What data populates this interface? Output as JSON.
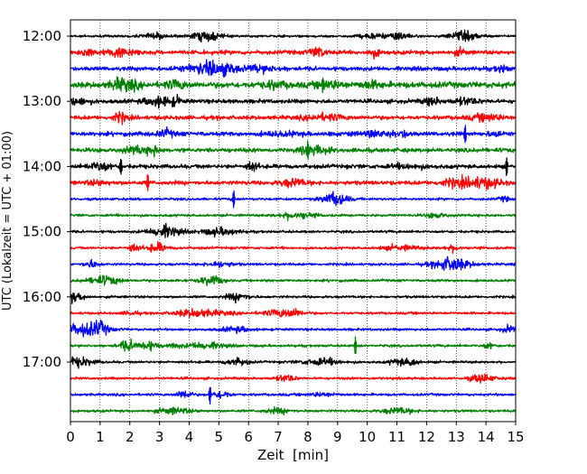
{
  "colors": {
    "background": "#ffffff",
    "axes": "#000000",
    "grid": "#000000",
    "trace_black": "#000000",
    "trace_red": "#ff0000",
    "trace_blue": "#0000ff",
    "trace_green": "#008000"
  },
  "chart_data": {
    "type": "line",
    "title": "",
    "xlabel": "Zeit  [min]",
    "ylabel": "UTC (Lokalzeit = UTC + 01:00)",
    "xlim": [
      0,
      15
    ],
    "x_ticks": [
      "0",
      "1",
      "2",
      "3",
      "4",
      "5",
      "6",
      "7",
      "8",
      "9",
      "10",
      "11",
      "12",
      "13",
      "14",
      "15"
    ],
    "y_ticks": [
      "12:00",
      "13:00",
      "14:00",
      "15:00",
      "16:00",
      "17:00"
    ],
    "grid": "vertical dotted at each minute",
    "trace_interval_minutes": 15,
    "trace_color_cycle": [
      "black",
      "red",
      "blue",
      "green"
    ],
    "traces": [
      {
        "start": "12:00",
        "color": "black",
        "amplitude": "low"
      },
      {
        "start": "12:15",
        "color": "red",
        "amplitude": "medium"
      },
      {
        "start": "12:30",
        "color": "blue",
        "amplitude": "medium"
      },
      {
        "start": "12:45",
        "color": "green",
        "amplitude": "high"
      },
      {
        "start": "13:00",
        "color": "black",
        "amplitude": "medium"
      },
      {
        "start": "13:15",
        "color": "red",
        "amplitude": "medium"
      },
      {
        "start": "13:30",
        "color": "blue",
        "amplitude": "medium"
      },
      {
        "start": "13:45",
        "color": "green",
        "amplitude": "medium"
      },
      {
        "start": "14:00",
        "color": "black",
        "amplitude": "medium"
      },
      {
        "start": "14:15",
        "color": "red",
        "amplitude": "medium"
      },
      {
        "start": "14:30",
        "color": "blue",
        "amplitude": "low"
      },
      {
        "start": "14:45",
        "color": "green",
        "amplitude": "low"
      },
      {
        "start": "15:00",
        "color": "black",
        "amplitude": "low"
      },
      {
        "start": "15:15",
        "color": "red",
        "amplitude": "low"
      },
      {
        "start": "15:30",
        "color": "blue",
        "amplitude": "low"
      },
      {
        "start": "15:45",
        "color": "green",
        "amplitude": "low"
      },
      {
        "start": "16:00",
        "color": "black",
        "amplitude": "low"
      },
      {
        "start": "16:15",
        "color": "red",
        "amplitude": "low"
      },
      {
        "start": "16:30",
        "color": "blue",
        "amplitude": "low"
      },
      {
        "start": "16:45",
        "color": "green",
        "amplitude": "low"
      },
      {
        "start": "17:00",
        "color": "black",
        "amplitude": "low"
      },
      {
        "start": "17:15",
        "color": "red",
        "amplitude": "low"
      },
      {
        "start": "17:30",
        "color": "blue",
        "amplitude": "low"
      },
      {
        "start": "17:45",
        "color": "green",
        "amplitude": "low"
      }
    ],
    "events": [
      {
        "trace": 3,
        "minute": 8.5
      },
      {
        "trace": 6,
        "minute": 13.3
      },
      {
        "trace": 7,
        "minute": 8.0
      },
      {
        "trace": 8,
        "minute": 1.7
      },
      {
        "trace": 8,
        "minute": 14.7
      },
      {
        "trace": 9,
        "minute": 2.6
      },
      {
        "trace": 10,
        "minute": 5.5
      },
      {
        "trace": 19,
        "minute": 9.6
      },
      {
        "trace": 22,
        "minute": 4.7
      }
    ]
  }
}
